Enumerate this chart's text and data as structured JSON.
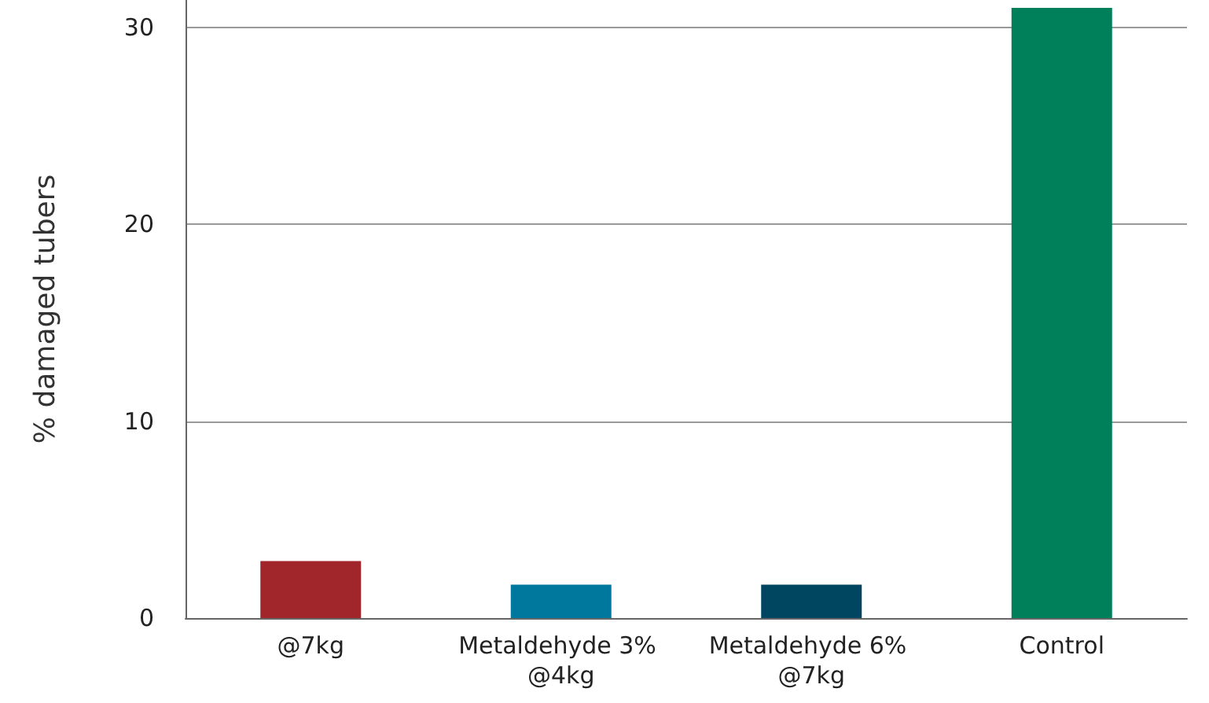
{
  "chart_data": {
    "type": "bar",
    "ylabel": "% damaged tubers",
    "categories": [
      "@7kg",
      "Metaldehyde 3% @4kg",
      "Metaldehyde 6% @7kg",
      "Control"
    ],
    "values": [
      2.9,
      1.7,
      1.7,
      31
    ],
    "colors": [
      "#a0262c",
      "#00789e",
      "#004660",
      "#00805a"
    ],
    "ylim": [
      0,
      31.4
    ],
    "yticks": [
      0,
      10,
      20,
      30
    ],
    "grid": "y"
  }
}
